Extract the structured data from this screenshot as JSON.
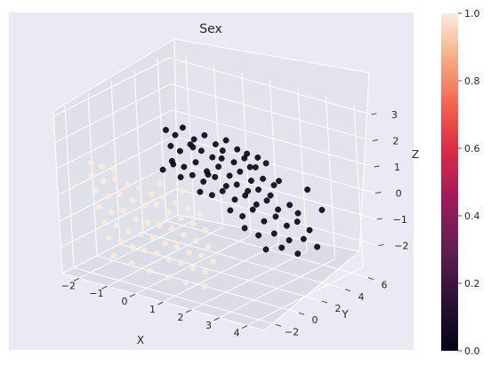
{
  "chart_data": {
    "type": "scatter",
    "projection": "3d",
    "title": "Sex",
    "xlabel": "X",
    "ylabel": "Y",
    "zlabel": "Z",
    "xlim": [
      -2.6,
      4.6
    ],
    "ylim": [
      -3.0,
      7.0
    ],
    "zlim": [
      -3.0,
      3.2
    ],
    "xticks": [
      -2,
      -1,
      0,
      1,
      2,
      3,
      4
    ],
    "yticks": [
      -2,
      0,
      2,
      4,
      6
    ],
    "zticks": [
      -2,
      -1,
      0,
      1,
      2,
      3
    ],
    "grid": true,
    "colormap": "rocket",
    "colorbar": {
      "min": 0.0,
      "max": 1.0,
      "ticks": [
        "0.0",
        "0.2",
        "0.4",
        "0.6",
        "0.8",
        "1.0"
      ]
    },
    "series": [
      {
        "value": 0,
        "color": "#03051a",
        "points": [
          [
            -0.5,
            1.5,
            2.1
          ],
          [
            -0.3,
            1.8,
            1.9
          ],
          [
            -0.1,
            2.0,
            2.2
          ],
          [
            0.2,
            2.2,
            1.8
          ],
          [
            0.5,
            2.4,
            2.0
          ],
          [
            0.8,
            2.6,
            1.7
          ],
          [
            1.1,
            2.8,
            1.9
          ],
          [
            1.4,
            3.0,
            1.6
          ],
          [
            1.7,
            3.1,
            1.5
          ],
          [
            2.0,
            3.3,
            1.4
          ],
          [
            -0.4,
            1.6,
            1.5
          ],
          [
            -0.2,
            1.9,
            1.3
          ],
          [
            0.1,
            2.1,
            1.6
          ],
          [
            0.4,
            2.3,
            1.4
          ],
          [
            0.7,
            2.5,
            1.2
          ],
          [
            1.0,
            2.7,
            1.5
          ],
          [
            1.3,
            2.9,
            1.1
          ],
          [
            1.6,
            3.1,
            1.3
          ],
          [
            1.9,
            3.3,
            1.0
          ],
          [
            2.2,
            3.5,
            1.2
          ],
          [
            -0.3,
            1.4,
            1.0
          ],
          [
            0.0,
            1.7,
            0.8
          ],
          [
            0.3,
            2.0,
            1.0
          ],
          [
            0.6,
            2.2,
            0.7
          ],
          [
            0.9,
            2.5,
            0.9
          ],
          [
            1.2,
            2.7,
            0.6
          ],
          [
            1.5,
            2.9,
            0.8
          ],
          [
            1.8,
            3.1,
            0.5
          ],
          [
            2.1,
            3.4,
            0.6
          ],
          [
            2.4,
            3.6,
            0.4
          ],
          [
            -0.6,
            1.3,
            0.6
          ],
          [
            -0.1,
            1.6,
            0.4
          ],
          [
            0.2,
            1.9,
            0.5
          ],
          [
            0.5,
            2.1,
            0.3
          ],
          [
            0.8,
            2.4,
            0.5
          ],
          [
            1.1,
            2.6,
            0.2
          ],
          [
            1.4,
            2.8,
            0.3
          ],
          [
            1.7,
            3.0,
            0.1
          ],
          [
            2.0,
            3.2,
            0.2
          ],
          [
            2.3,
            3.5,
            0.0
          ],
          [
            0.4,
            2.0,
            -0.1
          ],
          [
            0.7,
            2.3,
            -0.2
          ],
          [
            1.0,
            2.5,
            0.0
          ],
          [
            1.3,
            2.8,
            -0.3
          ],
          [
            1.6,
            3.0,
            -0.1
          ],
          [
            1.9,
            3.2,
            -0.4
          ],
          [
            2.2,
            3.4,
            -0.2
          ],
          [
            2.5,
            3.6,
            -0.5
          ],
          [
            2.8,
            3.9,
            -0.3
          ],
          [
            3.0,
            4.1,
            -0.6
          ],
          [
            1.2,
            2.6,
            -0.7
          ],
          [
            1.5,
            2.9,
            -0.9
          ],
          [
            1.8,
            3.1,
            -0.6
          ],
          [
            2.1,
            3.3,
            -1.0
          ],
          [
            2.4,
            3.6,
            -0.8
          ],
          [
            2.7,
            3.8,
            -1.1
          ],
          [
            3.0,
            4.0,
            -0.9
          ],
          [
            3.3,
            4.3,
            -1.2
          ],
          [
            1.6,
            2.8,
            -1.3
          ],
          [
            2.0,
            3.0,
            -1.5
          ],
          [
            2.4,
            3.4,
            -1.4
          ],
          [
            2.8,
            3.7,
            -1.6
          ],
          [
            3.2,
            4.0,
            -1.5
          ],
          [
            3.5,
            4.4,
            -1.8
          ],
          [
            2.2,
            3.1,
            -2.0
          ],
          [
            2.6,
            3.5,
            -1.9
          ],
          [
            3.0,
            3.9,
            -2.1
          ],
          [
            -0.2,
            3.0,
            1.2
          ],
          [
            0.6,
            3.5,
            0.9
          ],
          [
            1.4,
            4.0,
            0.7
          ],
          [
            2.2,
            4.5,
            0.3
          ],
          [
            3.0,
            5.0,
            0.1
          ],
          [
            3.4,
            5.2,
            -0.6
          ],
          [
            0.0,
            0.8,
            1.1
          ],
          [
            0.9,
            1.6,
            0.8
          ]
        ]
      },
      {
        "value": 1,
        "color": "#faebdd",
        "points": [
          [
            -2.0,
            -1.5,
            0.6
          ],
          [
            -1.7,
            -1.2,
            0.4
          ],
          [
            -1.4,
            -0.9,
            0.5
          ],
          [
            -1.1,
            -0.6,
            0.3
          ],
          [
            -0.8,
            -0.3,
            0.2
          ],
          [
            -0.5,
            0.0,
            0.0
          ],
          [
            -0.2,
            0.3,
            -0.1
          ],
          [
            0.1,
            0.6,
            -0.3
          ],
          [
            0.4,
            0.9,
            -0.5
          ],
          [
            0.7,
            1.2,
            -0.7
          ],
          [
            -1.8,
            -1.6,
            0.1
          ],
          [
            -1.5,
            -1.3,
            -0.1
          ],
          [
            -1.2,
            -1.0,
            0.0
          ],
          [
            -0.9,
            -0.7,
            -0.2
          ],
          [
            -0.6,
            -0.4,
            -0.4
          ],
          [
            -0.3,
            -0.1,
            -0.3
          ],
          [
            0.0,
            0.2,
            -0.6
          ],
          [
            0.3,
            0.5,
            -0.8
          ],
          [
            0.6,
            0.8,
            -1.0
          ],
          [
            0.9,
            1.1,
            -1.2
          ],
          [
            -1.6,
            -1.9,
            -0.4
          ],
          [
            -1.3,
            -1.6,
            -0.6
          ],
          [
            -1.0,
            -1.3,
            -0.5
          ],
          [
            -0.7,
            -1.0,
            -0.8
          ],
          [
            -0.4,
            -0.7,
            -0.9
          ],
          [
            -0.1,
            -0.4,
            -1.0
          ],
          [
            0.2,
            -0.1,
            -1.1
          ],
          [
            0.5,
            0.2,
            -1.3
          ],
          [
            0.8,
            0.5,
            -1.5
          ],
          [
            1.1,
            0.8,
            -1.7
          ],
          [
            -1.4,
            -2.0,
            -0.9
          ],
          [
            -1.1,
            -1.7,
            -1.0
          ],
          [
            -0.8,
            -1.4,
            -1.2
          ],
          [
            -0.5,
            -1.1,
            -1.3
          ],
          [
            -0.2,
            -0.8,
            -1.4
          ],
          [
            0.1,
            -0.5,
            -1.6
          ],
          [
            0.4,
            -0.2,
            -1.7
          ],
          [
            0.7,
            0.1,
            -1.9
          ],
          [
            1.0,
            0.4,
            -2.0
          ],
          [
            1.3,
            0.7,
            -2.2
          ],
          [
            -1.2,
            -2.2,
            -1.4
          ],
          [
            -0.9,
            -1.9,
            -1.5
          ],
          [
            -0.6,
            -1.6,
            -1.7
          ],
          [
            -0.3,
            -1.3,
            -1.8
          ],
          [
            0.0,
            -1.0,
            -1.9
          ],
          [
            0.3,
            -0.7,
            -2.1
          ],
          [
            0.6,
            -0.4,
            -2.2
          ],
          [
            0.9,
            -0.1,
            -2.4
          ],
          [
            1.2,
            0.2,
            -2.5
          ],
          [
            -2.2,
            -1.0,
            0.9
          ],
          [
            -1.9,
            -0.8,
            0.8
          ],
          [
            -1.6,
            -0.5,
            0.7
          ],
          [
            -0.4,
            0.5,
            0.3
          ],
          [
            0.2,
            1.0,
            0.1
          ],
          [
            -1.0,
            -2.3,
            -2.0
          ],
          [
            -0.5,
            -2.0,
            -2.2
          ],
          [
            0.0,
            -1.7,
            -2.4
          ],
          [
            0.5,
            -1.3,
            -2.6
          ],
          [
            1.0,
            -1.0,
            -2.7
          ],
          [
            1.5,
            -0.6,
            -2.8
          ]
        ]
      }
    ]
  }
}
